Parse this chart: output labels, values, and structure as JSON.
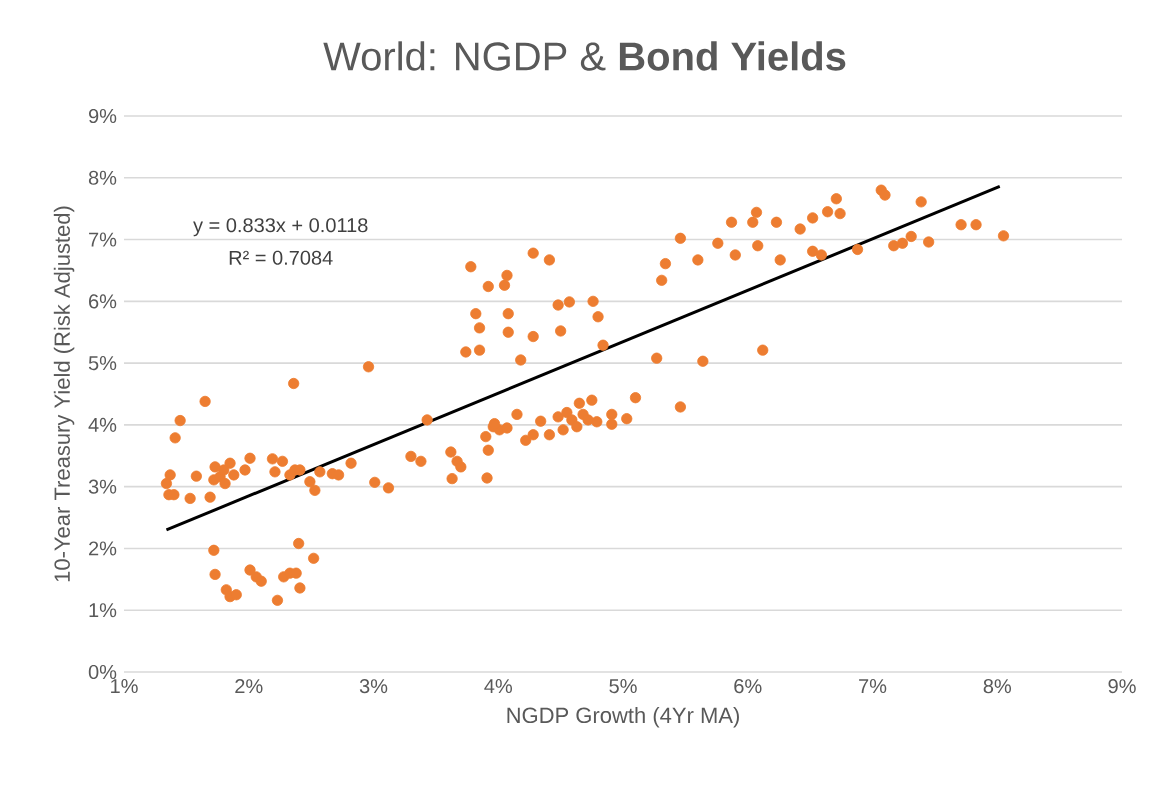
{
  "chart_data": {
    "type": "scatter",
    "title": "World: NGDP & **Bond Yields**",
    "xlabel": "NGDP Growth (4Yr MA)",
    "ylabel": "10-Year Treasury Yield (Risk Adjusted)",
    "annotations": [
      "y = 0.833x + 0.0118",
      "R² = 0.7084"
    ],
    "xlim": [
      1,
      9
    ],
    "ylim": [
      0,
      9
    ],
    "xticks": [
      {
        "value": 1,
        "label": "1%"
      },
      {
        "value": 2,
        "label": "2%"
      },
      {
        "value": 3,
        "label": "3%"
      },
      {
        "value": 4,
        "label": "4%"
      },
      {
        "value": 5,
        "label": "5%"
      },
      {
        "value": 6,
        "label": "6%"
      },
      {
        "value": 7,
        "label": "7%"
      },
      {
        "value": 8,
        "label": "8%"
      },
      {
        "value": 9,
        "label": "9%"
      }
    ],
    "yticks": [
      {
        "value": 0,
        "label": "0%"
      },
      {
        "value": 1,
        "label": "1%"
      },
      {
        "value": 2,
        "label": "2%"
      },
      {
        "value": 3,
        "label": "3%"
      },
      {
        "value": 4,
        "label": "4%"
      },
      {
        "value": 5,
        "label": "5%"
      },
      {
        "value": 6,
        "label": "6%"
      },
      {
        "value": 7,
        "label": "7%"
      },
      {
        "value": 8,
        "label": "8%"
      },
      {
        "value": 9,
        "label": "9%"
      }
    ],
    "grid": "y",
    "marker": "circle",
    "series": [
      {
        "color": "#ed7d31",
        "x": [
          1.34,
          1.37,
          1.36,
          1.4,
          1.41,
          1.45,
          1.53,
          1.58,
          1.65,
          1.69,
          1.72,
          1.73,
          1.77,
          1.81,
          1.85,
          1.8,
          1.88,
          1.97,
          2.01,
          2.19,
          2.21,
          2.27,
          2.33,
          2.37,
          2.41,
          2.49,
          2.53,
          2.57,
          2.67,
          2.72,
          2.82,
          2.36,
          2.96,
          3.01,
          3.12,
          3.3,
          3.38,
          3.43,
          3.62,
          3.67,
          3.7,
          3.63,
          3.91,
          3.9,
          3.92,
          3.96,
          4.01,
          4.07,
          4.15,
          1.72,
          1.73,
          1.82,
          1.85,
          1.9,
          2.01,
          2.06,
          2.1,
          2.23,
          2.28,
          2.33,
          2.38,
          2.41,
          2.4,
          2.52,
          3.82,
          3.85,
          4.08,
          4.08,
          3.74,
          3.85,
          3.78,
          3.92,
          4.05,
          4.07,
          4.28,
          4.41,
          4.18,
          4.28,
          4.48,
          4.57,
          4.5,
          4.76,
          4.8,
          4.84,
          5.27,
          5.31,
          5.34,
          5.46,
          5.6,
          5.76,
          5.64,
          5.46,
          5.1,
          5.87,
          5.9,
          6.04,
          6.08,
          3.97,
          4.22,
          4.28,
          4.34,
          4.41,
          4.48,
          4.52,
          4.55,
          4.59,
          4.63,
          4.65,
          4.68,
          4.72,
          4.75,
          4.79,
          4.91,
          4.91,
          5.03,
          6.07,
          6.23,
          6.26,
          6.42,
          6.52,
          6.52,
          6.59,
          6.64,
          6.71,
          6.74,
          6.88,
          7.07,
          7.1,
          7.17,
          7.24,
          7.31,
          7.39,
          7.45,
          7.71,
          7.83,
          8.05,
          6.12
        ],
        "values": [
          3.05,
          3.19,
          2.87,
          2.87,
          3.79,
          4.07,
          2.81,
          3.17,
          4.38,
          2.83,
          3.11,
          3.32,
          3.16,
          3.05,
          3.38,
          3.27,
          3.19,
          3.27,
          3.46,
          3.45,
          3.24,
          3.41,
          3.19,
          3.27,
          3.27,
          3.08,
          2.94,
          3.24,
          3.21,
          3.19,
          3.38,
          4.67,
          4.94,
          3.07,
          2.98,
          3.49,
          3.41,
          4.08,
          3.56,
          3.41,
          3.32,
          3.13,
          3.14,
          3.81,
          3.59,
          3.97,
          3.92,
          3.95,
          4.17,
          1.97,
          1.58,
          1.33,
          1.22,
          1.25,
          1.65,
          1.54,
          1.47,
          1.16,
          1.54,
          1.6,
          1.6,
          1.36,
          2.08,
          1.84,
          5.8,
          5.57,
          5.8,
          5.5,
          5.18,
          5.21,
          6.56,
          6.24,
          6.26,
          6.42,
          6.78,
          6.67,
          5.05,
          5.43,
          5.94,
          5.99,
          5.52,
          6.0,
          5.75,
          5.29,
          5.08,
          6.34,
          6.61,
          7.02,
          6.67,
          6.94,
          5.03,
          4.29,
          4.44,
          7.28,
          6.75,
          7.28,
          6.9,
          4.02,
          3.75,
          3.84,
          4.06,
          3.84,
          4.13,
          3.92,
          4.2,
          4.08,
          3.97,
          4.35,
          4.17,
          4.08,
          4.4,
          4.05,
          4.17,
          4.01,
          4.1,
          7.44,
          7.28,
          6.67,
          7.17,
          7.35,
          6.81,
          6.75,
          7.45,
          7.66,
          7.42,
          6.84,
          7.8,
          7.72,
          6.9,
          6.94,
          7.05,
          7.61,
          6.96,
          7.24,
          7.24,
          7.06,
          5.21
        ]
      },
      {
        "type": "line",
        "color": "#000000",
        "marker": "none",
        "line_style": "solid",
        "x": [
          1.34,
          8.02
        ],
        "values": [
          2.3,
          7.86
        ]
      }
    ]
  }
}
